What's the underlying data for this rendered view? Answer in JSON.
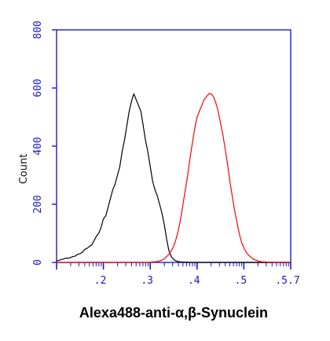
{
  "chart_data": {
    "type": "line",
    "chart_kind": "flow-cytometry histogram",
    "xlabel": "Alexa488-anti-α,β-Synuclein",
    "ylabel": "Count",
    "ylim": [
      0,
      800
    ],
    "y_ticks": [
      "0",
      "200",
      "400",
      "600",
      "800"
    ],
    "x_scale": "log",
    "x_ticks": [
      ".2",
      ".3",
      ".4",
      ".5",
      ".5.7"
    ],
    "grid": false,
    "legend": "none",
    "colors": {
      "axis": "#1a1acc",
      "frame": "#1a1acc",
      "control": "#000000",
      "stained": "#ff0000"
    },
    "series": [
      {
        "color": "#000000",
        "x": [
          0.0,
          0.05,
          0.1,
          0.15,
          0.2,
          0.25,
          0.3,
          0.35,
          0.4,
          0.45,
          0.5,
          0.55,
          0.6,
          0.65,
          0.7,
          0.75,
          0.8,
          0.85,
          0.9,
          0.95,
          1.0,
          1.05,
          1.1,
          1.15,
          1.2,
          1.25,
          1.3,
          1.35,
          1.4,
          1.45,
          1.5,
          1.55,
          1.6,
          1.65,
          1.7,
          1.75,
          1.8,
          1.85,
          1.9,
          1.95,
          2.0,
          2.05,
          2.1,
          2.15,
          2.2,
          2.25,
          2.3,
          2.35,
          2.4,
          2.45,
          2.5,
          2.55,
          2.6,
          2.65,
          2.7,
          2.75,
          2.8,
          2.85,
          2.9,
          2.95,
          3.0,
          3.05,
          3.1,
          3.15,
          3.2,
          3.25,
          3.3,
          3.35,
          3.4,
          3.45,
          3.5,
          3.55,
          3.6,
          3.65,
          3.7,
          3.75,
          3.8,
          3.85,
          3.9,
          3.95,
          4.0,
          4.05,
          4.1,
          4.15,
          4.2,
          4.25,
          4.3,
          4.35,
          4.4,
          4.45,
          4.5,
          4.55,
          4.6,
          4.65,
          4.7,
          4.75,
          4.8,
          4.85,
          4.9,
          4.95,
          5.0
        ],
        "values": [
          5,
          7,
          10,
          12,
          15,
          14,
          17,
          20,
          22,
          28,
          30,
          35,
          45,
          48,
          55,
          60,
          75,
          90,
          100,
          120,
          150,
          160,
          190,
          220,
          250,
          270,
          300,
          330,
          380,
          420,
          470,
          520,
          555,
          580,
          560,
          540,
          520,
          470,
          420,
          380,
          330,
          280,
          250,
          230,
          200,
          170,
          130,
          80,
          40,
          20,
          10,
          5,
          3,
          2,
          1,
          1,
          1,
          0,
          0,
          0,
          0,
          0,
          0,
          0,
          0,
          0,
          0,
          0,
          0,
          0,
          0,
          0,
          0,
          0,
          0,
          0,
          0,
          0,
          0,
          0,
          0,
          0,
          0,
          0,
          0,
          0,
          0,
          0,
          0,
          0,
          0,
          0,
          0,
          0,
          0,
          0,
          0,
          0,
          0,
          0,
          0
        ]
      },
      {
        "color": "#ff0000",
        "x": [
          0.0,
          0.05,
          0.1,
          0.15,
          0.2,
          0.25,
          0.3,
          0.35,
          0.4,
          0.45,
          0.5,
          0.55,
          0.6,
          0.65,
          0.7,
          0.75,
          0.8,
          0.85,
          0.9,
          0.95,
          1.0,
          1.05,
          1.1,
          1.15,
          1.2,
          1.25,
          1.3,
          1.35,
          1.4,
          1.45,
          1.5,
          1.55,
          1.6,
          1.65,
          1.7,
          1.75,
          1.8,
          1.85,
          1.9,
          1.95,
          2.0,
          2.05,
          2.1,
          2.15,
          2.2,
          2.25,
          2.3,
          2.35,
          2.4,
          2.45,
          2.5,
          2.55,
          2.6,
          2.65,
          2.7,
          2.75,
          2.8,
          2.85,
          2.9,
          2.95,
          3.0,
          3.05,
          3.1,
          3.15,
          3.2,
          3.25,
          3.3,
          3.35,
          3.4,
          3.45,
          3.5,
          3.55,
          3.6,
          3.65,
          3.7,
          3.75,
          3.8,
          3.85,
          3.9,
          3.95,
          4.0,
          4.05,
          4.1,
          4.15,
          4.2,
          4.25,
          4.3,
          4.35,
          4.4,
          4.45,
          4.5,
          4.55,
          4.6,
          4.65,
          4.7,
          4.75,
          4.8,
          4.85,
          4.9,
          4.95,
          5.0
        ],
        "values": [
          0,
          0,
          0,
          0,
          0,
          0,
          0,
          0,
          0,
          0,
          0,
          0,
          0,
          0,
          0,
          0,
          0,
          0,
          0,
          0,
          0,
          0,
          0,
          0,
          0,
          0,
          0,
          0,
          0,
          0,
          0,
          0,
          0,
          0,
          0,
          0,
          0,
          0,
          0,
          0,
          0,
          2,
          2,
          3,
          5,
          8,
          12,
          20,
          28,
          40,
          55,
          80,
          110,
          150,
          200,
          250,
          300,
          360,
          410,
          460,
          500,
          520,
          540,
          560,
          570,
          580,
          580,
          570,
          550,
          520,
          480,
          440,
          390,
          340,
          280,
          230,
          180,
          140,
          100,
          70,
          50,
          35,
          25,
          18,
          12,
          8,
          5,
          3,
          2,
          2,
          1,
          1,
          1,
          0,
          0,
          0,
          0,
          0,
          0,
          0,
          0
        ]
      }
    ]
  }
}
